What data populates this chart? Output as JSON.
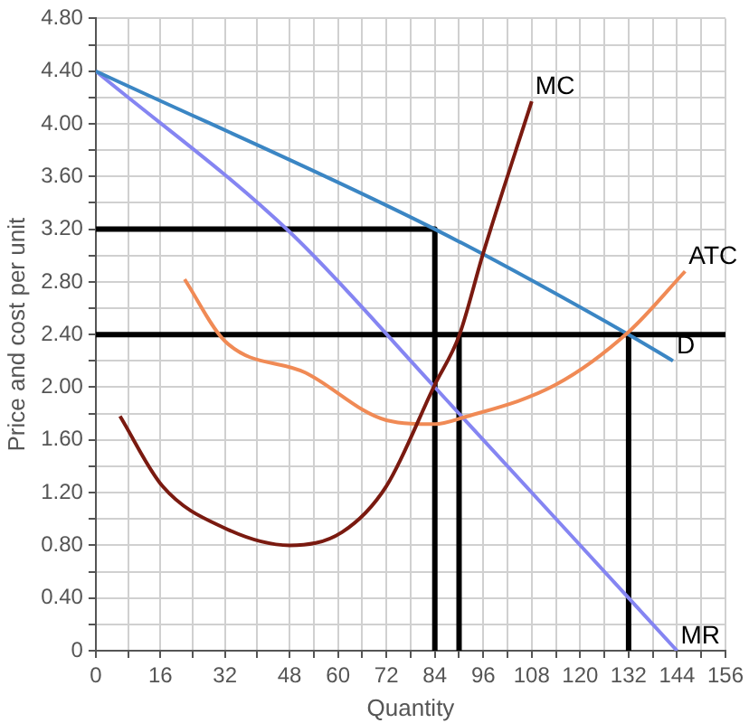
{
  "chart_data": {
    "type": "line",
    "xlabel": "Quantity",
    "ylabel": "Price and cost per unit",
    "xlim": [
      0,
      156
    ],
    "ylim": [
      0,
      4.8
    ],
    "xticks": [
      0,
      {
        "value": 8,
        "label": null
      },
      16,
      {
        "value": 24,
        "label": null
      },
      32,
      {
        "value": 40,
        "label": null
      },
      48,
      {
        "value": 54,
        "label": null
      },
      60,
      {
        "value": 66,
        "label": null
      },
      72,
      {
        "value": 78,
        "label": null
      },
      84,
      {
        "value": 90,
        "label": null
      },
      96,
      {
        "value": 102,
        "label": null
      },
      108,
      {
        "value": 114,
        "label": null
      },
      120,
      {
        "value": 126,
        "label": null
      },
      132,
      {
        "value": 138,
        "label": null
      },
      144,
      {
        "value": 150,
        "label": null
      },
      156
    ],
    "yticks": [
      {
        "value": 0,
        "label": "0"
      },
      {
        "value": 0.2,
        "label": null
      },
      {
        "value": 0.4,
        "label": "0.40"
      },
      {
        "value": 0.6,
        "label": null
      },
      {
        "value": 0.8,
        "label": "0.80"
      },
      {
        "value": 1.0,
        "label": null
      },
      {
        "value": 1.2,
        "label": "1.20"
      },
      {
        "value": 1.4,
        "label": null
      },
      {
        "value": 1.6,
        "label": "1.60"
      },
      {
        "value": 1.8,
        "label": null
      },
      {
        "value": 2.0,
        "label": "2.00"
      },
      {
        "value": 2.2,
        "label": null
      },
      {
        "value": 2.4,
        "label": "2.40"
      },
      {
        "value": 2.6,
        "label": null
      },
      {
        "value": 2.8,
        "label": "2.80"
      },
      {
        "value": 3.0,
        "label": null
      },
      {
        "value": 3.2,
        "label": "3.20"
      },
      {
        "value": 3.4,
        "label": null
      },
      {
        "value": 3.6,
        "label": "3.60"
      },
      {
        "value": 3.8,
        "label": null
      },
      {
        "value": 4.0,
        "label": "4.00"
      },
      {
        "value": 4.2,
        "label": null
      },
      {
        "value": 4.4,
        "label": "4.40"
      },
      {
        "value": 4.6,
        "label": null
      },
      {
        "value": 4.8,
        "label": "4.80"
      }
    ],
    "grid": true,
    "legend": false,
    "marker": "none",
    "line_style": "solid",
    "series": [
      {
        "name": "MC",
        "color": "#7a1a10",
        "x": [
          6,
          16.5,
          32,
          48,
          61,
          72,
          84,
          90,
          96,
          108
        ],
        "values": [
          1.78,
          1.25,
          0.93,
          0.8,
          0.9,
          1.25,
          2.02,
          2.39,
          3.02,
          4.17
        ]
      },
      {
        "name": "ATC",
        "color": "#f08a55",
        "x": [
          22,
          32,
          52,
          72,
          84,
          91,
          114,
          132,
          146
        ],
        "values": [
          2.82,
          2.35,
          2.11,
          1.75,
          1.72,
          1.77,
          2.02,
          2.42,
          2.88
        ]
      },
      {
        "name": "D",
        "color": "#3b86c4",
        "x": [
          0,
          84,
          132,
          143
        ],
        "values": [
          4.4,
          3.2,
          2.4,
          2.2
        ]
      },
      {
        "name": "MR",
        "color": "#8585f2",
        "x": [
          0,
          48,
          84,
          132,
          144
        ],
        "values": [
          4.4,
          3.18,
          2.0,
          0.4,
          0
        ]
      },
      {
        "color": "#000000",
        "x": [
          0,
          84,
          84
        ],
        "values": [
          3.2,
          3.2,
          0
        ]
      },
      {
        "color": "#000000",
        "x": [
          0,
          156
        ],
        "values": [
          2.4,
          2.4
        ]
      },
      {
        "color": "#000000",
        "x": [
          90,
          90
        ],
        "values": [
          2.4,
          0
        ]
      },
      {
        "color": "#000000",
        "x": [
          132,
          132
        ],
        "values": [
          2.4,
          0
        ]
      }
    ]
  }
}
